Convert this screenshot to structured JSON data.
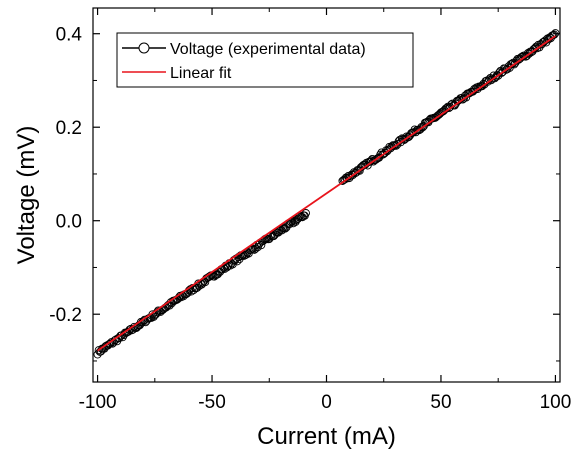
{
  "chart_data": {
    "type": "scatter",
    "title": "",
    "xlabel": "Current (mA)",
    "ylabel": "Voltage (mV)",
    "xlim": [
      -102,
      102
    ],
    "ylim": [
      -0.345,
      0.455
    ],
    "xticks": [
      -100,
      -50,
      0,
      50,
      100
    ],
    "xtick_labels": [
      "-100",
      "-50",
      "0",
      "50",
      "100"
    ],
    "yticks": [
      -0.2,
      0.0,
      0.2,
      0.4
    ],
    "ytick_labels": [
      "-0.2",
      "0.0",
      "0.2",
      "0.4"
    ],
    "grid": false,
    "legend_position": "top-left",
    "series": [
      {
        "name": "Voltage (experimental data)",
        "kind": "scatter",
        "marker": "open-circle",
        "color": "#000000",
        "segments": [
          {
            "x_start": -100,
            "x_end": -9,
            "step": 0.5,
            "y_at_x_start": -0.282,
            "y_at_x_end": 0.015
          },
          {
            "x_start": 7,
            "x_end": 100,
            "step": 0.5,
            "y_at_x_start": 0.085,
            "y_at_x_end": 0.398
          }
        ]
      },
      {
        "name": "Linear fit",
        "kind": "line",
        "color": "#e8141c",
        "x": [
          -100,
          100
        ],
        "y": [
          -0.278,
          0.395
        ]
      }
    ]
  }
}
